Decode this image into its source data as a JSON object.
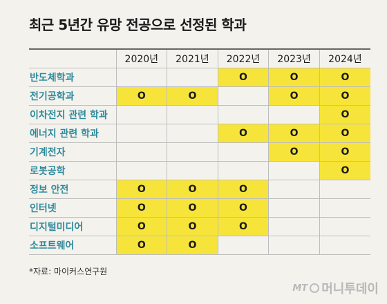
{
  "title": "최근 5년간 유망 전공으로 선정된 학과",
  "years": [
    "2020년",
    "2021년",
    "2022년",
    "2023년",
    "2024년"
  ],
  "mark": "O",
  "highlight_color": "#f6e43a",
  "rows": [
    {
      "name": "반도체학과",
      "flags": [
        0,
        0,
        1,
        1,
        1
      ]
    },
    {
      "name": "전기공학과",
      "flags": [
        1,
        1,
        0,
        1,
        1
      ]
    },
    {
      "name": "이차전지 관련 학과",
      "flags": [
        0,
        0,
        0,
        0,
        1
      ]
    },
    {
      "name": "에너지 관련 학과",
      "flags": [
        0,
        0,
        1,
        1,
        1
      ]
    },
    {
      "name": "기계전자",
      "flags": [
        0,
        0,
        0,
        1,
        1
      ]
    },
    {
      "name": "로봇공학",
      "flags": [
        0,
        0,
        0,
        0,
        1
      ]
    },
    {
      "name": "정보 안전",
      "flags": [
        1,
        1,
        1,
        0,
        0
      ]
    },
    {
      "name": "인터넷",
      "flags": [
        1,
        1,
        1,
        0,
        0
      ]
    },
    {
      "name": "디지털미디어",
      "flags": [
        1,
        1,
        1,
        0,
        0
      ]
    },
    {
      "name": "소프트웨어",
      "flags": [
        1,
        1,
        0,
        0,
        0
      ]
    }
  ],
  "source": "*자료: 마이커스연구원",
  "logo": {
    "prefix": "MT",
    "name": "머니투데이"
  }
}
